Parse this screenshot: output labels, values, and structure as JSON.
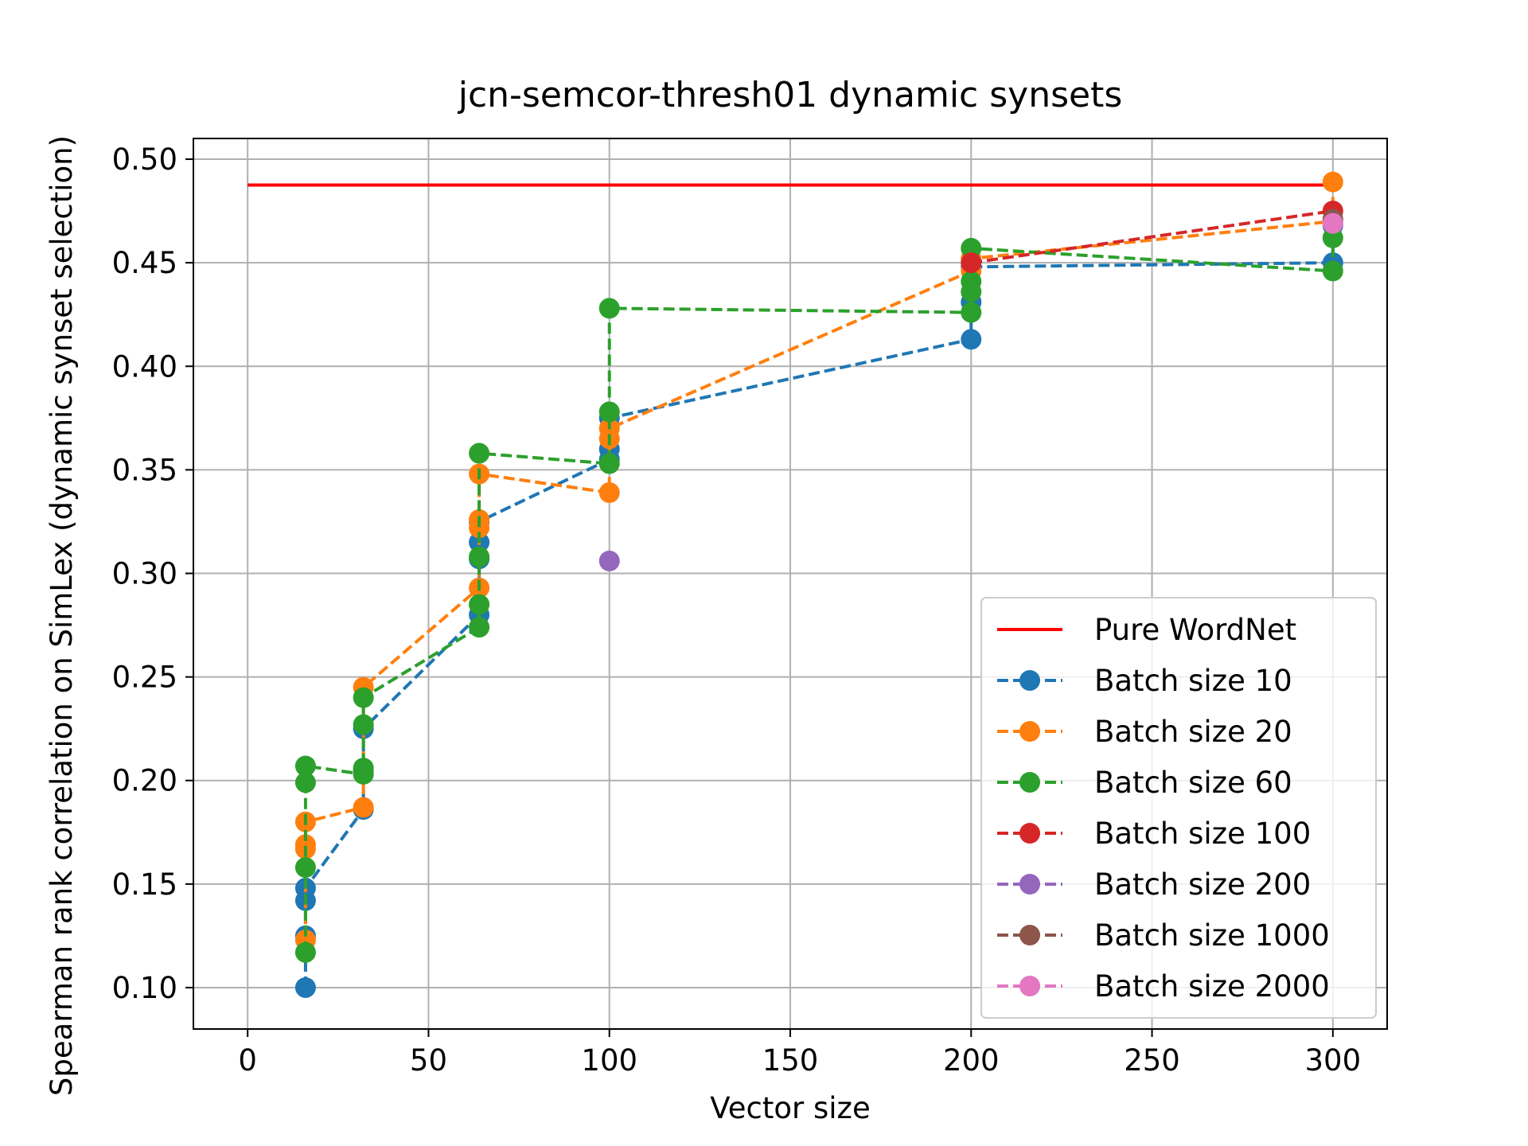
{
  "chart_data": {
    "type": "line",
    "title": "jcn-semcor-thresh01 dynamic synsets",
    "xlabel": "Vector size",
    "ylabel": "Spearman rank correlation on SimLex (dynamic synset selection)",
    "xlim": [
      -15,
      315
    ],
    "ylim": [
      0.08,
      0.51
    ],
    "xticks": [
      0,
      50,
      100,
      150,
      200,
      250,
      300
    ],
    "xtick_labels": [
      "0",
      "50",
      "100",
      "150",
      "200",
      "250",
      "300"
    ],
    "yticks": [
      0.1,
      0.15,
      0.2,
      0.25,
      0.3,
      0.35,
      0.4,
      0.45,
      0.5
    ],
    "ytick_labels": [
      "0.10",
      "0.15",
      "0.20",
      "0.25",
      "0.30",
      "0.35",
      "0.40",
      "0.45",
      "0.50"
    ],
    "grid": true,
    "legend_position": "lower-right",
    "series": [
      {
        "name": "Pure WordNet",
        "color": "#ff0000",
        "style": "solid",
        "marker": false,
        "points": [
          [
            0,
            0.4875
          ],
          [
            300,
            0.4875
          ]
        ]
      },
      {
        "name": "Batch size 10",
        "color": "#1f77b4",
        "style": "dashed",
        "marker": true,
        "points": [
          [
            16,
            0.1
          ],
          [
            16,
            0.125
          ],
          [
            16,
            0.142
          ],
          [
            16,
            0.148
          ],
          [
            32,
            0.186
          ],
          [
            32,
            0.205
          ],
          [
            32,
            0.225
          ],
          [
            64,
            0.28
          ],
          [
            64,
            0.307
          ],
          [
            64,
            0.315
          ],
          [
            64,
            0.325
          ],
          [
            100,
            0.355
          ],
          [
            100,
            0.36
          ],
          [
            100,
            0.375
          ],
          [
            200,
            0.413
          ],
          [
            200,
            0.431
          ],
          [
            200,
            0.448
          ],
          [
            300,
            0.45
          ],
          [
            300,
            0.468
          ]
        ]
      },
      {
        "name": "Batch size 20",
        "color": "#ff7f0e",
        "style": "dashed",
        "marker": true,
        "points": [
          [
            16,
            0.123
          ],
          [
            16,
            0.167
          ],
          [
            16,
            0.169
          ],
          [
            16,
            0.18
          ],
          [
            32,
            0.187
          ],
          [
            32,
            0.245
          ],
          [
            64,
            0.293
          ],
          [
            64,
            0.322
          ],
          [
            64,
            0.326
          ],
          [
            64,
            0.348
          ],
          [
            100,
            0.339
          ],
          [
            100,
            0.365
          ],
          [
            100,
            0.37
          ],
          [
            200,
            0.446
          ],
          [
            200,
            0.452
          ],
          [
            300,
            0.47
          ],
          [
            300,
            0.489
          ]
        ]
      },
      {
        "name": "Batch size 60",
        "color": "#2ca02c",
        "style": "dashed",
        "marker": true,
        "points": [
          [
            16,
            0.117
          ],
          [
            16,
            0.158
          ],
          [
            16,
            0.199
          ],
          [
            16,
            0.207
          ],
          [
            32,
            0.203
          ],
          [
            32,
            0.206
          ],
          [
            32,
            0.227
          ],
          [
            32,
            0.24
          ],
          [
            64,
            0.274
          ],
          [
            64,
            0.285
          ],
          [
            64,
            0.308
          ],
          [
            64,
            0.358
          ],
          [
            100,
            0.353
          ],
          [
            100,
            0.378
          ],
          [
            100,
            0.428
          ],
          [
            200,
            0.426
          ],
          [
            200,
            0.436
          ],
          [
            200,
            0.441
          ],
          [
            200,
            0.457
          ],
          [
            300,
            0.446
          ],
          [
            300,
            0.462
          ]
        ]
      },
      {
        "name": "Batch size 100",
        "color": "#d62728",
        "style": "dashed",
        "marker": true,
        "points": [
          [
            200,
            0.45
          ],
          [
            300,
            0.475
          ]
        ]
      },
      {
        "name": "Batch size 200",
        "color": "#9467bd",
        "style": "dashed",
        "marker": true,
        "points": [
          [
            100,
            0.306
          ]
        ]
      },
      {
        "name": "Batch size 1000",
        "color": "#8c564b",
        "style": "dashed",
        "marker": true,
        "points": [
          [
            300,
            0.471
          ]
        ]
      },
      {
        "name": "Batch size 2000",
        "color": "#e377c2",
        "style": "dashed",
        "marker": true,
        "points": [
          [
            300,
            0.469
          ]
        ]
      }
    ]
  }
}
